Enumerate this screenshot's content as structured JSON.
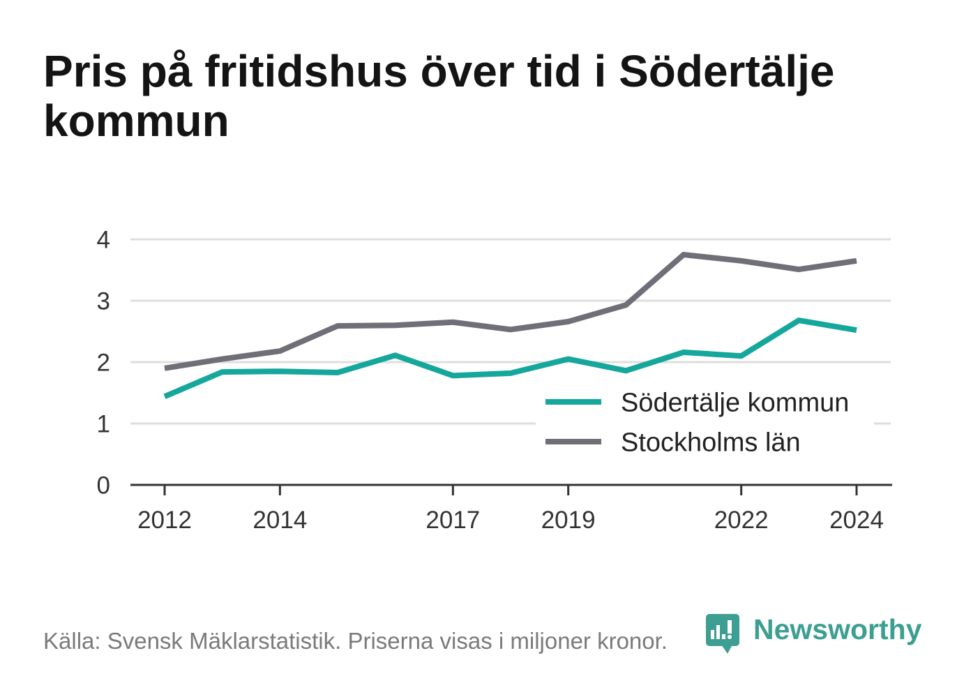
{
  "chart_data": {
    "type": "line",
    "title": "Pris på fritidshus över tid i Södertälje kommun",
    "x": [
      2012,
      2013,
      2014,
      2015,
      2016,
      2017,
      2018,
      2019,
      2020,
      2021,
      2022,
      2023,
      2024
    ],
    "x_ticks": [
      2012,
      2014,
      2017,
      2019,
      2022,
      2024
    ],
    "y_ticks": [
      0,
      1,
      2,
      3,
      4
    ],
    "xlim": [
      2012,
      2024
    ],
    "ylim": [
      0,
      4
    ],
    "grid": true,
    "legend": "bottom-right",
    "series": [
      {
        "name": "Södertälje kommun",
        "color": "#15a79b",
        "values": [
          1.44,
          1.84,
          1.85,
          1.83,
          2.11,
          1.78,
          1.82,
          2.05,
          1.86,
          2.16,
          2.1,
          2.68,
          2.52
        ]
      },
      {
        "name": "Stockholms län",
        "color": "#6f6f78",
        "values": [
          1.9,
          2.05,
          2.18,
          2.59,
          2.6,
          2.65,
          2.53,
          2.66,
          2.93,
          3.75,
          3.65,
          3.51,
          3.65
        ]
      }
    ]
  },
  "footer": {
    "source": "Källa: Svensk Mäklarstatistik. Priserna visas i miljoner kronor.",
    "brand_name": "Newsworthy",
    "brand_icon": "newsworthy-logo-icon",
    "brand_color": "#3d9f91"
  }
}
